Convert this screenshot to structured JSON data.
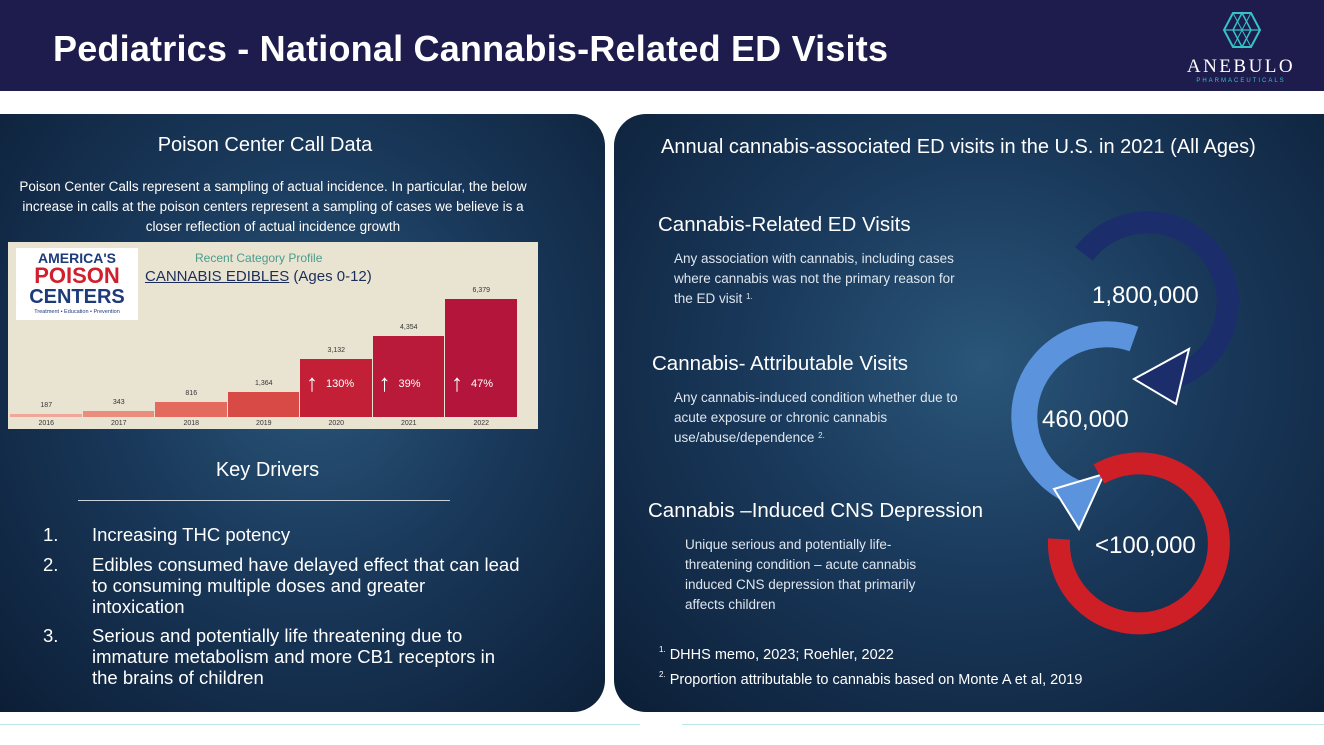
{
  "header": {
    "title": "Pediatrics - National Cannabis-Related ED Visits",
    "logo_name": "ANEBULO",
    "logo_sub": "PHARMACEUTICALS"
  },
  "left": {
    "heading": "Poison Center Call Data",
    "intro": "Poison Center Calls represent a sampling of actual incidence. In particular, the below increase in calls at the poison centers represent a sampling of cases we believe is a closer reflection of actual incidence growth",
    "apc_logo": {
      "line1": "AMERICA'S",
      "line2": "POISON",
      "line3": "CENTERS",
      "tagline": "Treatment • Education • Prevention"
    },
    "key_heading": "Key Drivers",
    "drivers": [
      {
        "num": "1.",
        "text": "Increasing THC potency"
      },
      {
        "num": "2.",
        "text": "Edibles consumed  have delayed effect that can lead to  consuming multiple doses and greater intoxication"
      },
      {
        "num": "3.",
        "text": "Serious and potentially life threatening due to immature metabolism and more CB1 receptors in the brains of children"
      }
    ]
  },
  "chart_data": {
    "type": "bar",
    "subtitle": "Recent Category Profile",
    "title_underlined": "CANNABIS EDIBLES",
    "title_rest": " (Ages 0-12)",
    "categories": [
      "2016",
      "2017",
      "2018",
      "2019",
      "2020",
      "2021",
      "2022"
    ],
    "values": [
      187,
      343,
      816,
      1364,
      3132,
      4354,
      6379
    ],
    "value_labels": [
      "187",
      "343",
      "816",
      "1,364",
      "3,132",
      "4,354",
      "6,379"
    ],
    "annotations": [
      {
        "category": "2020",
        "arrow": "↑",
        "text": "130%"
      },
      {
        "category": "2021",
        "arrow": "↑",
        "text": "39%"
      },
      {
        "category": "2022",
        "arrow": "↑",
        "text": "47%"
      }
    ],
    "ylim": [
      0,
      6379
    ],
    "colors": [
      "#f0a79a",
      "#ec8c7d",
      "#e36a5c",
      "#d84a45",
      "#c32038",
      "#ba1a39",
      "#b3163a"
    ]
  },
  "right": {
    "heading": "Annual cannabis-associated ED visits in the U.S. in 2021 (All Ages)",
    "sections": [
      {
        "title": "Cannabis-Related ED Visits",
        "body": "Any association with cannabis, including cases where cannabis was not the primary reason for the ED visit",
        "sup": "1.",
        "value": "1,800,000",
        "color": "#1b2d6b"
      },
      {
        "title": "Cannabis- Attributable Visits",
        "body": "Any cannabis-induced condition whether due to acute exposure or chronic cannabis use/abuse/dependence",
        "sup": "2.",
        "value": "460,000",
        "color": "#5b93dc"
      },
      {
        "title": "Cannabis –Induced CNS Depression",
        "body": "Unique serious and potentially life-threatening condition – acute cannabis induced CNS depression that primarily affects children",
        "sup": "",
        "value": "<100,000",
        "color": "#cf1f26"
      }
    ],
    "footnotes": [
      {
        "sup": "1.",
        "text": " DHHS memo, 2023; Roehler, 2022"
      },
      {
        "sup": "2.",
        "text": " Proportion attributable to cannabis based on Monte A et al, 2019"
      }
    ]
  }
}
